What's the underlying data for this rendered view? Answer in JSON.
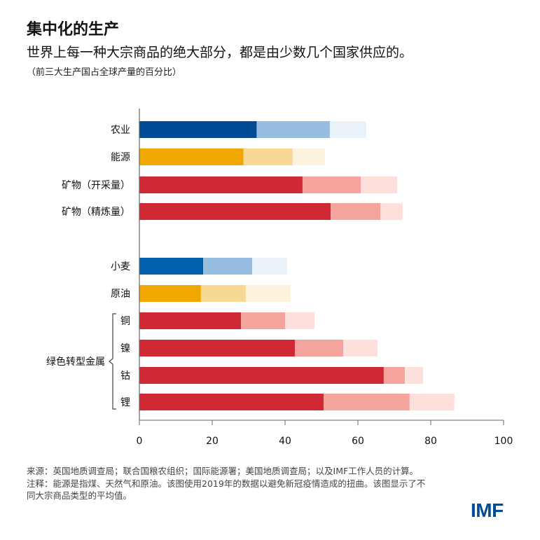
{
  "header": {
    "title": "集中化的生产",
    "subtitle": "世界上每一种大宗商品的绝大部分，都是由少数几个国家供应的。",
    "note": "（前三大生产国占全球产量的百分比）"
  },
  "chart_data": {
    "type": "bar",
    "orientation": "horizontal",
    "stacked": true,
    "title": "",
    "xlabel": "",
    "ylabel": "",
    "xlim": [
      0,
      100
    ],
    "xticks": [
      0,
      20,
      40,
      60,
      80,
      100
    ],
    "grid": false,
    "categories": [
      "农业",
      "能源",
      "矿物（开采量）",
      "矿物（精炼量）",
      "小麦",
      "原油",
      "铜",
      "镍",
      "钴",
      "锂"
    ],
    "group_label": "绿色转型金属",
    "group_members": [
      "铜",
      "镍",
      "钴",
      "锂"
    ],
    "series": [
      {
        "values": [
          32.2,
          28.6,
          44.8,
          52.5,
          17.5,
          16.9,
          27.9,
          42.7,
          67.1,
          50.6
        ]
      },
      {
        "values": [
          20.1,
          13.5,
          16.0,
          13.7,
          13.5,
          12.3,
          12.1,
          13.3,
          5.8,
          23.6
        ]
      },
      {
        "values": [
          10.0,
          8.9,
          10.0,
          6.1,
          9.6,
          12.3,
          8.1,
          9.4,
          5.0,
          12.3
        ]
      }
    ],
    "colors": {
      "农业": [
        "#004B96",
        "#97BDE0",
        "#EAF2FA"
      ],
      "能源": [
        "#F0A800",
        "#F7D994",
        "#FDF3DC"
      ],
      "矿物（开采量）": [
        "#D12836",
        "#F4A49C",
        "#FDE0DC"
      ],
      "矿物（精炼量）": [
        "#D12836",
        "#F4A49C",
        "#FDE0DC"
      ],
      "小麦": [
        "#0060AD",
        "#97BDE0",
        "#EAF2FA"
      ],
      "原油": [
        "#F0A800",
        "#F7D994",
        "#FDF3DC"
      ],
      "铜": [
        "#D12836",
        "#F4A49C",
        "#FDE0DC"
      ],
      "镍": [
        "#D12836",
        "#F4A49C",
        "#FDE0DC"
      ],
      "钴": [
        "#D12836",
        "#F4A49C",
        "#FDE0DC"
      ],
      "锂": [
        "#D12836",
        "#F4A49C",
        "#FDE0DC"
      ]
    }
  },
  "footer": {
    "source": "来源：英国地质调查局；联合国粮农组织；国际能源署；美国地质调查局；以及IMF工作人员的计算。",
    "note": "注释：能源是指煤、天然气和原油。该图使用2019年的数据以避免新冠疫情造成的扭曲。该图显示了不同大宗商品类型的平均值。"
  },
  "logo": "IMF"
}
